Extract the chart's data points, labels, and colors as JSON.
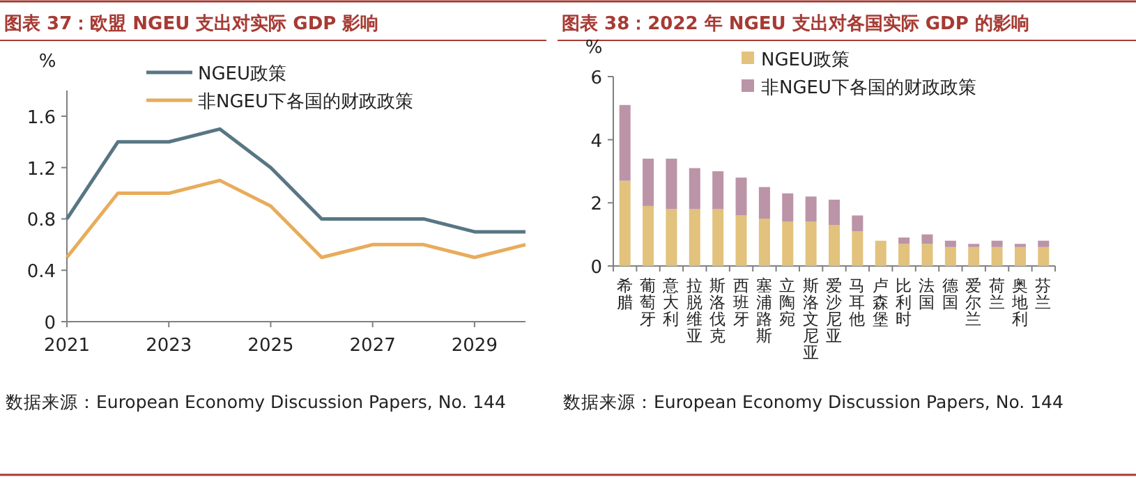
{
  "chart_data": [
    {
      "type": "line",
      "title": "图表 37：欧盟 NGEU 支出对实际 GDP 影响",
      "ylabel": "%",
      "x": [
        2021,
        2022,
        2023,
        2024,
        2025,
        2026,
        2027,
        2028,
        2029,
        2030
      ],
      "series": [
        {
          "name": "NGEU政策",
          "color": "#587683",
          "values": [
            0.8,
            1.4,
            1.4,
            1.5,
            1.2,
            0.8,
            0.8,
            0.8,
            0.7,
            0.7
          ]
        },
        {
          "name": "非NGEU下各国的财政政策",
          "color": "#e8ac5c",
          "values": [
            0.5,
            1.0,
            1.0,
            1.1,
            0.9,
            0.5,
            0.6,
            0.6,
            0.5,
            0.6
          ]
        }
      ],
      "xlim": [
        2021,
        2030
      ],
      "xticks": [
        2021,
        2023,
        2025,
        2027,
        2029
      ],
      "ylim": [
        0,
        1.8
      ],
      "yticks": [
        0,
        0.4,
        0.8,
        1.2,
        1.6
      ],
      "legend": "top",
      "grid": false,
      "annotations": [
        "数据来源：European Economy Discussion Papers, No. 144"
      ]
    },
    {
      "type": "bar",
      "stacked": true,
      "title": "图表 38：2022 年 NGEU 支出对各国实际 GDP 的影响",
      "ylabel": "%",
      "categories": [
        "希腊",
        "葡萄牙",
        "意大利",
        "拉脱维亚",
        "斯洛伐克",
        "西班牙",
        "塞浦路斯",
        "立陶宛",
        "斯洛文尼亚",
        "爱沙尼亚",
        "马耳他",
        "卢森堡",
        "比利时",
        "法国",
        "德国",
        "爱尔兰",
        "荷兰",
        "奥地利",
        "芬兰"
      ],
      "series": [
        {
          "name": "NGEU政策",
          "color": "#e2c27c",
          "values": [
            2.7,
            1.9,
            1.8,
            1.8,
            1.8,
            1.6,
            1.5,
            1.4,
            1.4,
            1.3,
            1.1,
            0.8,
            0.7,
            0.7,
            0.6,
            0.6,
            0.6,
            0.6,
            0.6
          ]
        },
        {
          "name": "非NGEU下各国的财政政策",
          "color": "#bb94a7",
          "values": [
            2.4,
            1.5,
            1.6,
            1.3,
            1.2,
            1.2,
            1.0,
            0.9,
            0.8,
            0.8,
            0.5,
            0,
            0.2,
            0.3,
            0.2,
            0.1,
            0.2,
            0.1,
            0.2
          ]
        }
      ],
      "ylim": [
        0,
        6
      ],
      "yticks": [
        0,
        2,
        4,
        6
      ],
      "legend": "top",
      "grid": false,
      "annotations": [
        "数据来源：European Economy Discussion Papers, No. 144"
      ]
    }
  ]
}
